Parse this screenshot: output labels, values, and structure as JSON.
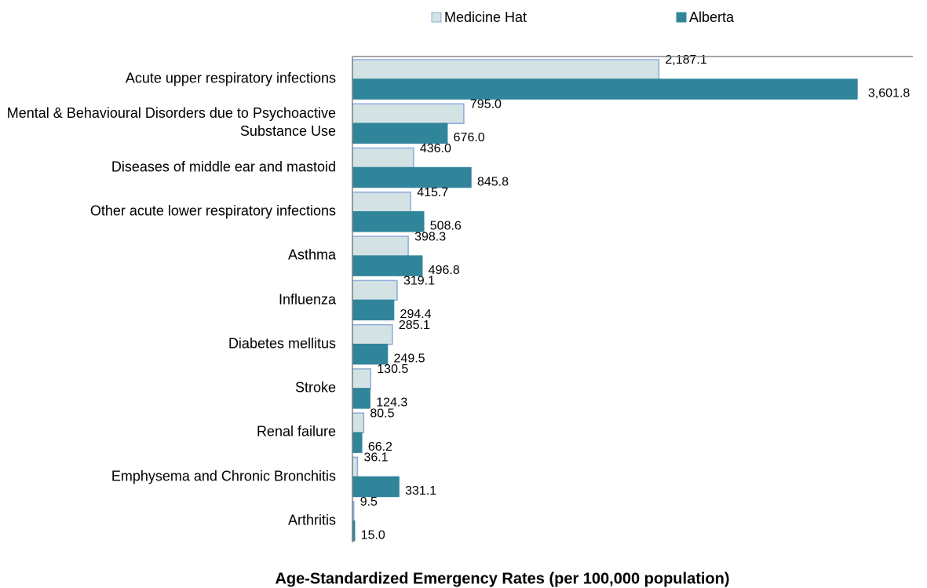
{
  "chart_data": {
    "type": "bar",
    "orientation": "horizontal",
    "title": "Age-Standardized Emergency Rates (per 100,000 population)",
    "categories": [
      "Acute upper respiratory infections",
      "Mental & Behavioural Disorders due to Psychoactive Substance Use",
      "Diseases of middle ear and mastoid",
      "Other acute lower respiratory infections",
      "Asthma",
      "Influenza",
      "Diabetes mellitus",
      "Stroke",
      "Renal failure",
      "Emphysema and Chronic Bronchitis",
      "Arthritis"
    ],
    "series": [
      {
        "name": "Medicine Hat",
        "color": "#d3e3e3",
        "edge_color": "#8eaadb",
        "values": [
          2187.1,
          795.0,
          436.0,
          415.7,
          398.3,
          319.1,
          285.1,
          130.5,
          80.5,
          36.1,
          9.5
        ],
        "value_labels": [
          "2,187.1",
          "795.0",
          "436.0",
          "415.7",
          "398.3",
          "319.1",
          "285.1",
          "130.5",
          "80.5",
          "36.1",
          "9.5"
        ]
      },
      {
        "name": "Alberta",
        "color": "#31859b",
        "values": [
          3601.8,
          676.0,
          845.8,
          508.6,
          496.8,
          294.4,
          249.5,
          124.3,
          66.2,
          331.1,
          15.0
        ],
        "value_labels": [
          "3,601.8",
          "676.0",
          "845.8",
          "508.6",
          "496.8",
          "294.4",
          "249.5",
          "124.3",
          "66.2",
          "331.1",
          "15.0"
        ]
      }
    ],
    "xlim": [
      0,
      4000
    ],
    "legend": "top"
  }
}
